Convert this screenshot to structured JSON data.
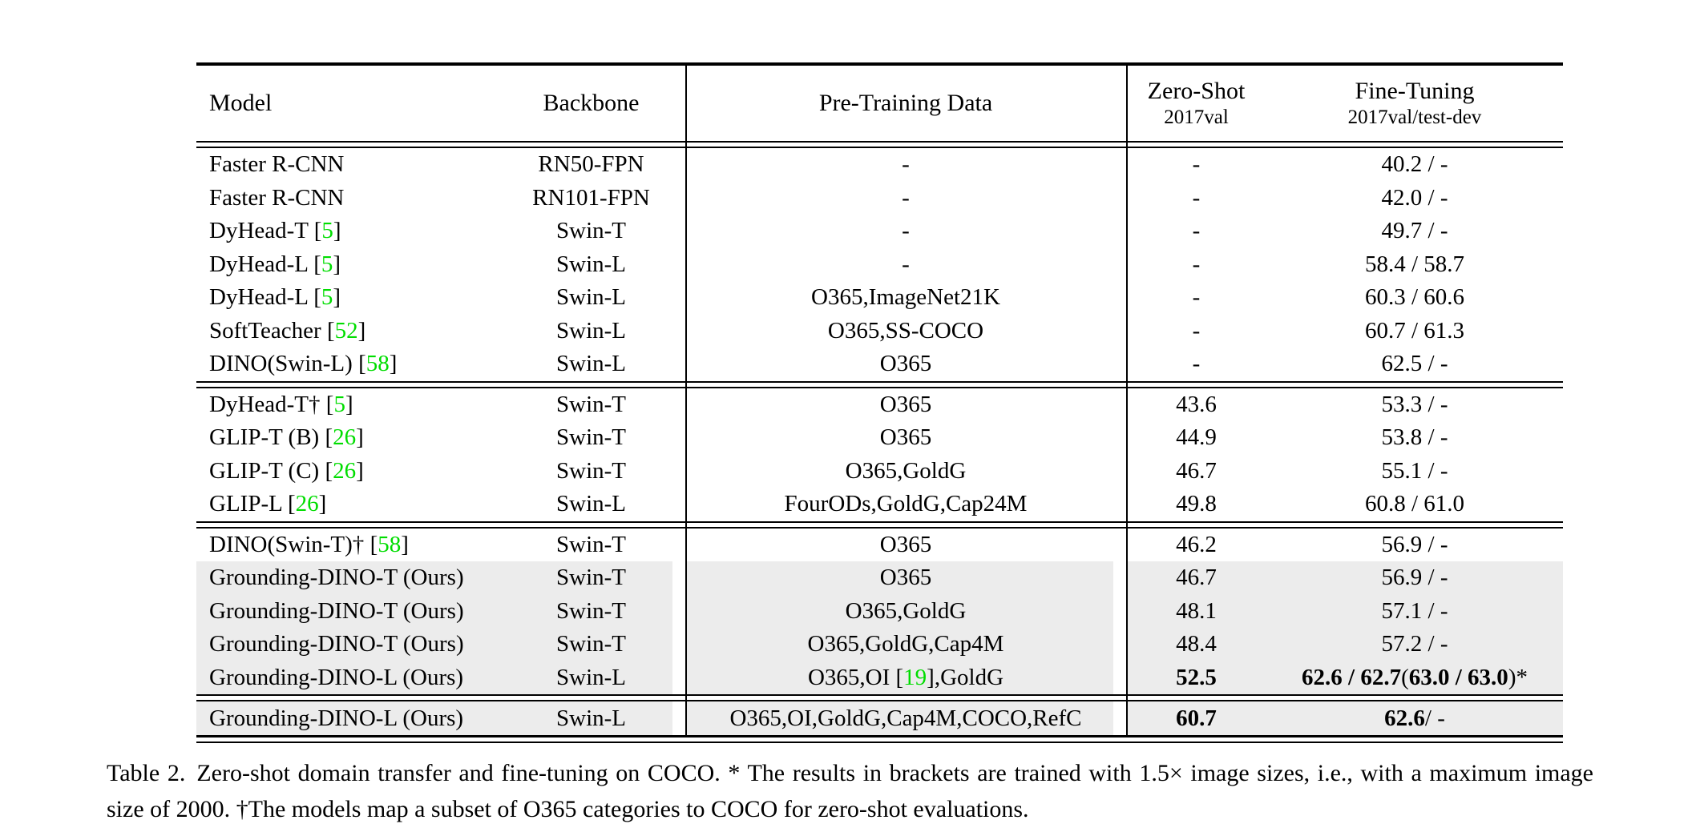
{
  "colors": {
    "cite_green": "#00DD00",
    "row_gray": "#ECECEC"
  },
  "table": {
    "headers": {
      "model": "Model",
      "backbone": "Backbone",
      "pretraining": "Pre-Training Data",
      "zeroshot_line1": "Zero-Shot",
      "zeroshot_line2": "2017val",
      "finetuning_line1": "Fine-Tuning",
      "finetuning_line2": "2017val/test-dev"
    },
    "blocks": [
      {
        "rows": [
          {
            "model": "Faster R-CNN",
            "backbone": "RN50-FPN",
            "pretrain": "-",
            "zeroshot": "-",
            "finetune": "40.2 / -",
            "gray": false
          },
          {
            "model": "Faster R-CNN",
            "backbone": "RN101-FPN",
            "pretrain": "-",
            "zeroshot": "-",
            "finetune": "42.0 / -",
            "gray": false
          },
          {
            "model": "DyHead-T {5}",
            "backbone": "Swin-T",
            "pretrain": "-",
            "zeroshot": "-",
            "finetune": "49.7 / -",
            "gray": false
          },
          {
            "model": "DyHead-L {5}",
            "backbone": "Swin-L",
            "pretrain": "-",
            "zeroshot": "-",
            "finetune": "58.4 / 58.7",
            "gray": false
          },
          {
            "model": "DyHead-L {5}",
            "backbone": "Swin-L",
            "pretrain": "O365,ImageNet21K",
            "zeroshot": "-",
            "finetune": "60.3 / 60.6",
            "gray": false
          },
          {
            "model": "SoftTeacher {52}",
            "backbone": "Swin-L",
            "pretrain": "O365,SS-COCO",
            "zeroshot": "-",
            "finetune": "60.7 / 61.3",
            "gray": false
          },
          {
            "model": "DINO(Swin-L) {58}",
            "backbone": "Swin-L",
            "pretrain": "O365",
            "zeroshot": "-",
            "finetune": "62.5 / -",
            "gray": false
          }
        ]
      },
      {
        "rows": [
          {
            "model": "DyHead-T† {5}",
            "backbone": "Swin-T",
            "pretrain": "O365",
            "zeroshot": "43.6",
            "finetune": "53.3 / -",
            "gray": false
          },
          {
            "model": "GLIP-T (B) {26}",
            "backbone": "Swin-T",
            "pretrain": "O365",
            "zeroshot": "44.9",
            "finetune": "53.8 / -",
            "gray": false
          },
          {
            "model": "GLIP-T (C) {26}",
            "backbone": "Swin-T",
            "pretrain": "O365,GoldG",
            "zeroshot": "46.7",
            "finetune": "55.1 / -",
            "gray": false
          },
          {
            "model": "GLIP-L {26}",
            "backbone": "Swin-L",
            "pretrain": "FourODs,GoldG,Cap24M",
            "zeroshot": "49.8",
            "finetune": "60.8 / 61.0",
            "gray": false
          }
        ]
      },
      {
        "rows": [
          {
            "model": "DINO(Swin-T)† {58}",
            "backbone": "Swin-T",
            "pretrain": "O365",
            "zeroshot": "46.2",
            "finetune": "56.9 / -",
            "gray": false
          },
          {
            "model": "Grounding-DINO-T (Ours)",
            "backbone": "Swin-T",
            "pretrain": "O365",
            "zeroshot": "46.7",
            "finetune": "56.9 / -",
            "gray": true
          },
          {
            "model": "Grounding-DINO-T (Ours)",
            "backbone": "Swin-T",
            "pretrain": "O365,GoldG",
            "zeroshot": "48.1",
            "finetune": "57.1 / -",
            "gray": true
          },
          {
            "model": "Grounding-DINO-T (Ours)",
            "backbone": "Swin-T",
            "pretrain": "O365,GoldG,Cap4M",
            "zeroshot": "48.4",
            "finetune": "57.2 / -",
            "gray": true
          },
          {
            "model": "Grounding-DINO-L (Ours)",
            "backbone": "Swin-L",
            "pretrain": "O365,OI {19},GoldG",
            "zeroshot": "**52.5**",
            "finetune": "**62.6 / 62.7** (**63.0 / 63.0**)*",
            "gray": true
          }
        ]
      },
      {
        "rows": [
          {
            "model": "Grounding-DINO-L (Ours)",
            "backbone": "Swin-L",
            "pretrain": "O365,OI,GoldG,Cap4M,COCO,RefC",
            "zeroshot": "**60.7**",
            "finetune": "**62.6** / -",
            "gray": true
          }
        ]
      }
    ]
  },
  "caption": {
    "label": "Table 2.",
    "text": "Zero-shot domain transfer and fine-tuning on COCO. * The results in brackets are trained with 1.5× image sizes, i.e., with a maximum image size of 2000. †The models map a subset of O365 categories to COCO for zero-shot evaluations."
  }
}
